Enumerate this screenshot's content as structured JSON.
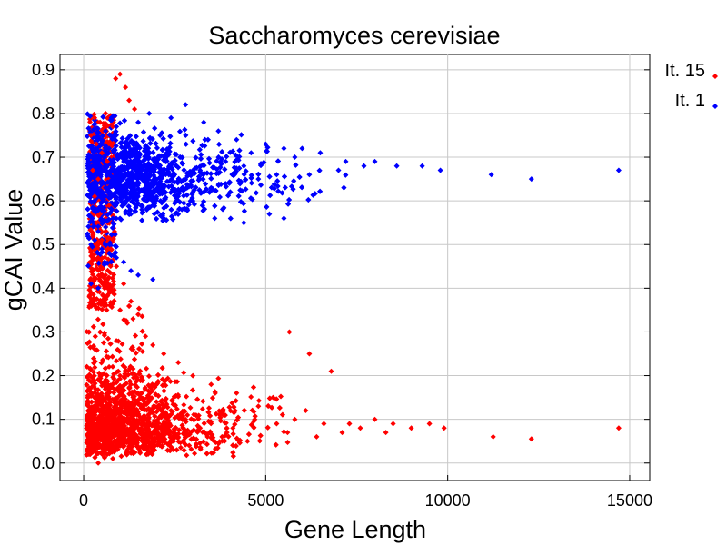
{
  "chart_data": {
    "type": "scatter",
    "title": "Saccharomyces cerevisiae",
    "xlabel": "Gene Length",
    "ylabel": "gCAI Value",
    "xlim": [
      -650,
      15550
    ],
    "ylim": [
      -0.04,
      0.935
    ],
    "x_ticks": [
      0,
      5000,
      10000,
      15000
    ],
    "x_tick_labels": [
      "0",
      "5000",
      "10000",
      "15000"
    ],
    "y_ticks": [
      0.0,
      0.1,
      0.2,
      0.3,
      0.4,
      0.5,
      0.6,
      0.7,
      0.8,
      0.9
    ],
    "y_tick_labels": [
      "0.0",
      "0.1",
      "0.2",
      "0.3",
      "0.4",
      "0.5",
      "0.6",
      "0.7",
      "0.8",
      "0.9"
    ],
    "grid": true,
    "legend_position": "right",
    "series": [
      {
        "name": "It. 15",
        "color": "#ff0000",
        "points": [
          [
            1000,
            0.89
          ],
          [
            880,
            0.88
          ],
          [
            1150,
            0.86
          ],
          [
            1250,
            0.83
          ],
          [
            1400,
            0.81
          ],
          [
            600,
            0.8
          ],
          [
            300,
            0.79
          ],
          [
            450,
            0.78
          ],
          [
            800,
            0.77
          ],
          [
            200,
            0.75
          ],
          [
            350,
            0.73
          ],
          [
            500,
            0.71
          ],
          [
            650,
            0.69
          ],
          [
            250,
            0.67
          ],
          [
            400,
            0.65
          ],
          [
            550,
            0.63
          ],
          [
            300,
            0.61
          ],
          [
            700,
            0.59
          ],
          [
            450,
            0.57
          ],
          [
            350,
            0.55
          ],
          [
            600,
            0.53
          ],
          [
            500,
            0.51
          ],
          [
            750,
            0.49
          ],
          [
            400,
            0.47
          ],
          [
            900,
            0.45
          ],
          [
            600,
            0.43
          ],
          [
            1100,
            0.41
          ],
          [
            800,
            0.39
          ],
          [
            1300,
            0.37
          ],
          [
            1000,
            0.35
          ],
          [
            1500,
            0.34
          ],
          [
            1200,
            0.32
          ],
          [
            5650,
            0.3
          ],
          [
            1700,
            0.29
          ],
          [
            150,
            0.3
          ],
          [
            900,
            0.28
          ],
          [
            1900,
            0.27
          ],
          [
            2200,
            0.25
          ],
          [
            6200,
            0.25
          ],
          [
            2600,
            0.23
          ],
          [
            6800,
            0.21
          ],
          [
            3000,
            0.2
          ],
          [
            3500,
            0.18
          ],
          [
            4200,
            0.16
          ],
          [
            5200,
            0.15
          ],
          [
            4800,
            0.13
          ],
          [
            6100,
            0.12
          ],
          [
            5800,
            0.1
          ],
          [
            6600,
            0.09
          ],
          [
            7300,
            0.09
          ],
          [
            8000,
            0.1
          ],
          [
            7600,
            0.08
          ],
          [
            8500,
            0.09
          ],
          [
            9000,
            0.08
          ],
          [
            9500,
            0.09
          ],
          [
            9900,
            0.08
          ],
          [
            8300,
            0.07
          ],
          [
            7100,
            0.07
          ],
          [
            6400,
            0.06
          ],
          [
            5600,
            0.07
          ],
          [
            11250,
            0.06
          ],
          [
            12300,
            0.055
          ],
          [
            14700,
            0.08
          ],
          [
            4500,
            0.05
          ],
          [
            3800,
            0.06
          ],
          [
            3200,
            0.08
          ],
          [
            2800,
            0.1
          ],
          [
            2400,
            0.12
          ],
          [
            2000,
            0.14
          ],
          [
            1600,
            0.16
          ],
          [
            1300,
            0.18
          ],
          [
            1000,
            0.2
          ],
          [
            700,
            0.22
          ],
          [
            500,
            0.12
          ],
          [
            300,
            0.05
          ],
          [
            150,
            0.02
          ],
          [
            400,
            0.0
          ],
          [
            800,
            0.01
          ],
          [
            1200,
            0.03
          ],
          [
            1800,
            0.05
          ],
          [
            2300,
            0.07
          ],
          [
            2900,
            0.04
          ],
          [
            3400,
            0.06
          ],
          [
            4100,
            0.08
          ],
          [
            4700,
            0.1
          ],
          [
            5300,
            0.09
          ]
        ]
      },
      {
        "name": "It. 1",
        "color": "#0000ff",
        "points": [
          [
            2800,
            0.82
          ],
          [
            1800,
            0.8
          ],
          [
            2400,
            0.79
          ],
          [
            3300,
            0.78
          ],
          [
            1500,
            0.78
          ],
          [
            900,
            0.77
          ],
          [
            600,
            0.76
          ],
          [
            3700,
            0.76
          ],
          [
            2100,
            0.75
          ],
          [
            4200,
            0.74
          ],
          [
            5000,
            0.73
          ],
          [
            5500,
            0.72
          ],
          [
            6000,
            0.72
          ],
          [
            6500,
            0.71
          ],
          [
            4600,
            0.71
          ],
          [
            5800,
            0.7
          ],
          [
            7200,
            0.69
          ],
          [
            8000,
            0.69
          ],
          [
            7700,
            0.68
          ],
          [
            8600,
            0.68
          ],
          [
            9300,
            0.68
          ],
          [
            9800,
            0.67
          ],
          [
            11200,
            0.66
          ],
          [
            12300,
            0.65
          ],
          [
            14700,
            0.67
          ],
          [
            7000,
            0.67
          ],
          [
            6200,
            0.66
          ],
          [
            5300,
            0.66
          ],
          [
            4800,
            0.65
          ],
          [
            4000,
            0.64
          ],
          [
            3500,
            0.63
          ],
          [
            3000,
            0.62
          ],
          [
            2600,
            0.61
          ],
          [
            2200,
            0.6
          ],
          [
            1900,
            0.59
          ],
          [
            1600,
            0.58
          ],
          [
            1300,
            0.57
          ],
          [
            1000,
            0.56
          ],
          [
            800,
            0.55
          ],
          [
            600,
            0.54
          ],
          [
            400,
            0.53
          ],
          [
            300,
            0.51
          ],
          [
            200,
            0.5
          ],
          [
            500,
            0.49
          ],
          [
            700,
            0.48
          ],
          [
            900,
            0.47
          ],
          [
            1100,
            0.46
          ],
          [
            1300,
            0.44
          ],
          [
            1500,
            0.43
          ],
          [
            200,
            0.41
          ],
          [
            400,
            0.4
          ],
          [
            1900,
            0.42
          ],
          [
            3600,
            0.56
          ],
          [
            4400,
            0.55
          ],
          [
            5100,
            0.57
          ],
          [
            5500,
            0.56
          ],
          [
            2700,
            0.58
          ],
          [
            3000,
            0.6
          ],
          [
            1200,
            0.7
          ],
          [
            700,
            0.72
          ],
          [
            400,
            0.74
          ],
          [
            250,
            0.69
          ],
          [
            150,
            0.66
          ],
          [
            2000,
            0.68
          ],
          [
            2500,
            0.66
          ],
          [
            3200,
            0.67
          ],
          [
            3900,
            0.69
          ],
          [
            4400,
            0.68
          ],
          [
            1700,
            0.64
          ],
          [
            1400,
            0.62
          ],
          [
            900,
            0.65
          ],
          [
            600,
            0.63
          ]
        ]
      }
    ]
  }
}
